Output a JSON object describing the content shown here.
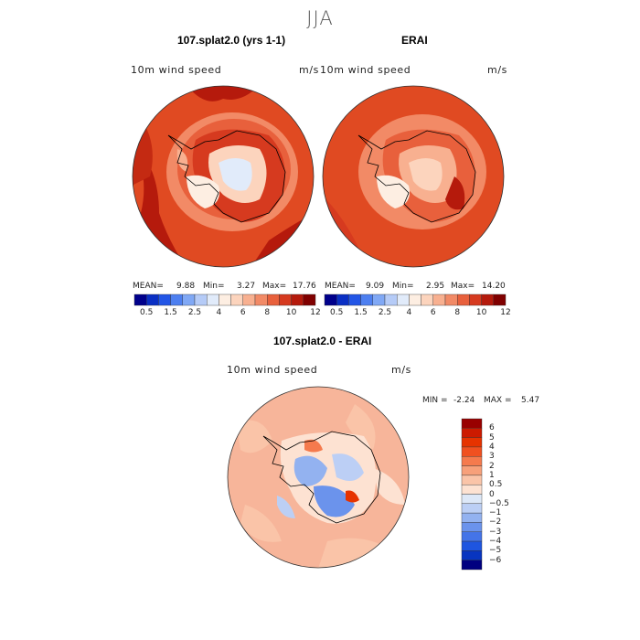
{
  "season_title": "JJA",
  "panels": [
    {
      "title": "107.splat2.0 (yrs 1-1)",
      "variable": "10m wind speed",
      "units": "m/s",
      "mean_label": "MEAN=",
      "mean": "9.88",
      "min_label": "Min=",
      "min": "3.27",
      "max_label": "Max=",
      "max": "17.76"
    },
    {
      "title": "ERAI",
      "variable": "10m wind speed",
      "units": "m/s",
      "mean_label": "MEAN=",
      "mean": "9.09",
      "min_label": "Min=",
      "min": "2.95",
      "max_label": "Max=",
      "max": "14.20"
    }
  ],
  "field_colorbar": {
    "colors": [
      "#00008b",
      "#0a2fc4",
      "#2255e6",
      "#4d7ff0",
      "#80a8f5",
      "#b5cbf7",
      "#e1ebfa",
      "#fdeee2",
      "#fcd4bd",
      "#f8b090",
      "#f28a66",
      "#e8603c",
      "#d63a1f",
      "#b51a0c",
      "#800000"
    ],
    "ticks": [
      "0.5",
      "1.5",
      "2.5",
      "4",
      "6",
      "8",
      "10",
      "12"
    ]
  },
  "difference_panel": {
    "title": "107.splat2.0 - ERAI",
    "variable": "10m wind speed",
    "units": "m/s",
    "min_label": "MIN =",
    "min": "-2.24",
    "max_label": "MAX =",
    "max": "5.47"
  },
  "diff_colorbar": {
    "colors": [
      "#990000",
      "#cc1a00",
      "#e63300",
      "#f05020",
      "#f57a4d",
      "#f7a07a",
      "#fac4a8",
      "#fde2d2",
      "#dde8f8",
      "#bccff5",
      "#93b2f0",
      "#6b93ec",
      "#4474e8",
      "#1e55e0",
      "#0835c0",
      "#000080"
    ],
    "ticks": [
      "6",
      "5",
      "4",
      "3",
      "2",
      "1",
      "0.5",
      "0",
      "−0.5",
      "−1",
      "−2",
      "−3",
      "−4",
      "−5",
      "−6"
    ]
  },
  "colors": {
    "coast": "#000000",
    "field_base": "#e04a22",
    "field_strong": "#b51a0c",
    "field_weak": "#f8b090",
    "diff_base": "#f7b59a"
  }
}
